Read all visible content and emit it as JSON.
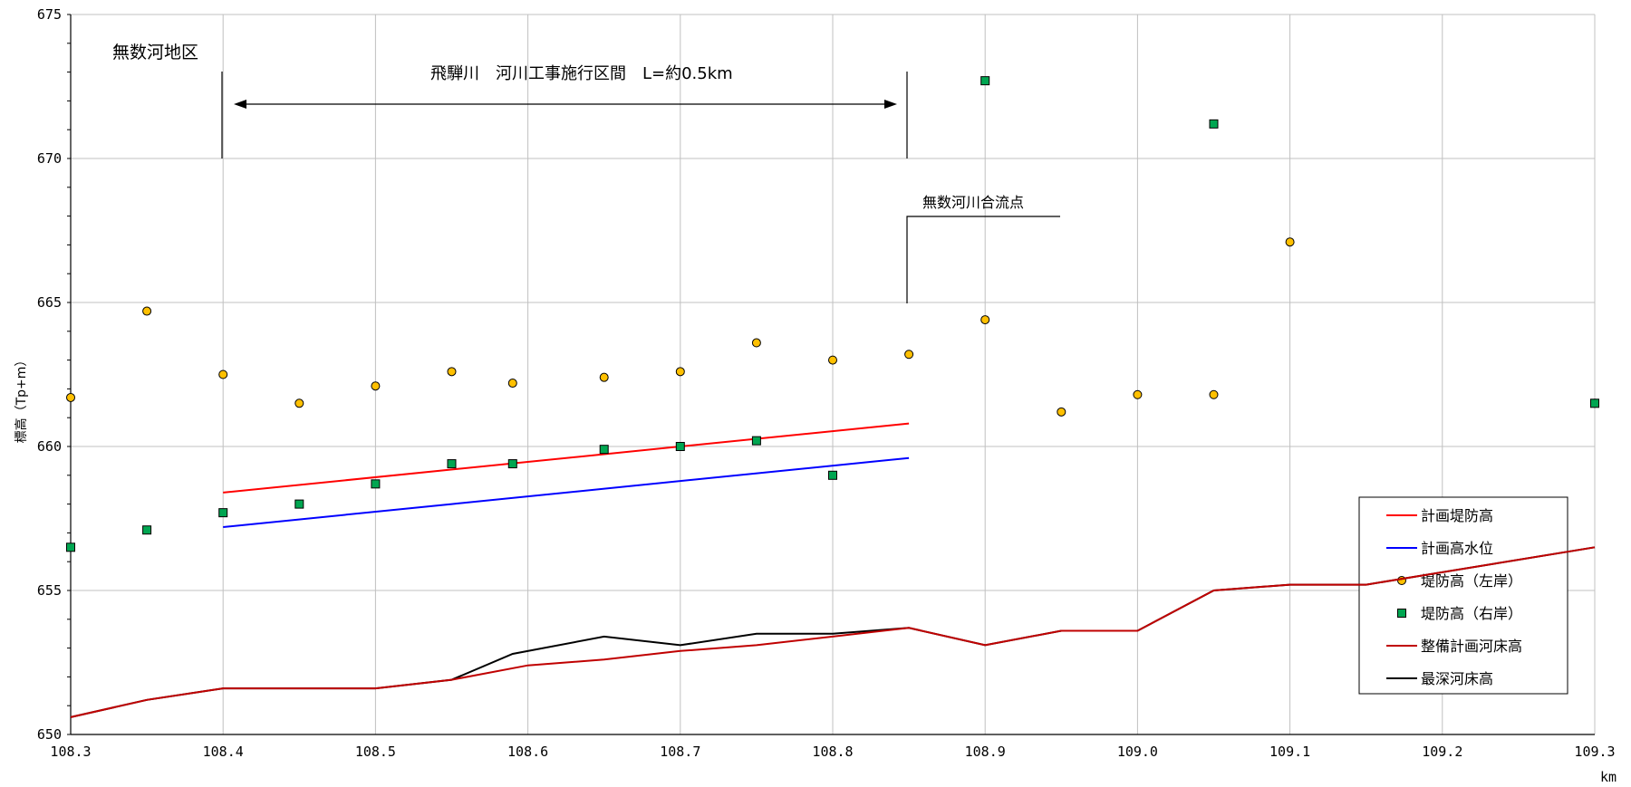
{
  "chart_data": {
    "type": "line",
    "title": "",
    "xlabel": "",
    "ylabel": "標高（Tp+m）",
    "x_unit": "km",
    "xlim": [
      108.3,
      109.3
    ],
    "ylim": [
      650,
      675
    ],
    "x_ticks": [
      "108.3",
      "108.4",
      "108.5",
      "108.6",
      "108.7",
      "108.8",
      "108.9",
      "109.0",
      "109.1",
      "109.2",
      "109.3"
    ],
    "y_ticks": [
      "650",
      "655",
      "660",
      "665",
      "670",
      "675"
    ],
    "grid": true,
    "legend_position": "bottom-right",
    "series": [
      {
        "name": "計画堤防高",
        "kind": "line",
        "color": "#ff0000",
        "points": [
          [
            108.4,
            658.4
          ],
          [
            108.85,
            660.8
          ]
        ]
      },
      {
        "name": "計画高水位",
        "kind": "line",
        "color": "#0000ff",
        "points": [
          [
            108.4,
            657.2
          ],
          [
            108.55,
            658.0
          ],
          [
            108.85,
            659.6
          ]
        ]
      },
      {
        "name": "堤防高（左岸）",
        "kind": "scatter",
        "marker": "circle",
        "color": "#ffc000",
        "points": [
          [
            108.3,
            661.7
          ],
          [
            108.35,
            664.7
          ],
          [
            108.4,
            662.5
          ],
          [
            108.45,
            661.5
          ],
          [
            108.5,
            662.1
          ],
          [
            108.55,
            662.6
          ],
          [
            108.59,
            662.2
          ],
          [
            108.65,
            662.4
          ],
          [
            108.7,
            662.6
          ],
          [
            108.75,
            663.6
          ],
          [
            108.8,
            663.0
          ],
          [
            108.85,
            663.2
          ],
          [
            108.9,
            664.4
          ],
          [
            108.95,
            661.2
          ],
          [
            109.0,
            661.8
          ],
          [
            109.05,
            661.8
          ],
          [
            109.1,
            667.1
          ],
          [
            109.3,
            661.5
          ]
        ]
      },
      {
        "name": "堤防高（右岸）",
        "kind": "scatter",
        "marker": "square",
        "color": "#00a651",
        "points": [
          [
            108.3,
            656.5
          ],
          [
            108.35,
            657.1
          ],
          [
            108.4,
            657.7
          ],
          [
            108.45,
            658.0
          ],
          [
            108.5,
            658.7
          ],
          [
            108.55,
            659.4
          ],
          [
            108.59,
            659.4
          ],
          [
            108.65,
            659.9
          ],
          [
            108.7,
            660.0
          ],
          [
            108.75,
            660.2
          ],
          [
            108.8,
            659.0
          ],
          [
            108.9,
            672.7
          ],
          [
            109.05,
            671.2
          ],
          [
            109.3,
            661.5
          ]
        ]
      },
      {
        "name": "整備計画河床高",
        "kind": "line",
        "color": "#c00000",
        "points": [
          [
            108.3,
            650.6
          ],
          [
            108.35,
            651.2
          ],
          [
            108.4,
            651.6
          ],
          [
            108.45,
            651.6
          ],
          [
            108.5,
            651.6
          ],
          [
            108.55,
            651.9
          ],
          [
            108.6,
            652.4
          ],
          [
            108.65,
            652.6
          ],
          [
            108.7,
            652.9
          ],
          [
            108.75,
            653.1
          ],
          [
            108.8,
            653.4
          ],
          [
            108.85,
            653.7
          ],
          [
            108.9,
            653.1
          ],
          [
            108.95,
            653.6
          ],
          [
            109.0,
            653.6
          ],
          [
            109.05,
            655.0
          ],
          [
            109.1,
            655.2
          ],
          [
            109.15,
            655.2
          ],
          [
            109.3,
            656.5
          ]
        ]
      },
      {
        "name": "最深河床高",
        "kind": "line",
        "color": "#000000",
        "points": [
          [
            108.3,
            650.6
          ],
          [
            108.35,
            651.2
          ],
          [
            108.4,
            651.6
          ],
          [
            108.45,
            651.6
          ],
          [
            108.5,
            651.6
          ],
          [
            108.55,
            651.9
          ],
          [
            108.59,
            652.8
          ],
          [
            108.65,
            653.4
          ],
          [
            108.7,
            653.1
          ],
          [
            108.75,
            653.5
          ],
          [
            108.8,
            653.5
          ],
          [
            108.85,
            653.7
          ],
          [
            108.9,
            653.1
          ],
          [
            108.95,
            653.6
          ],
          [
            109.0,
            653.6
          ],
          [
            109.05,
            655.0
          ],
          [
            109.1,
            655.2
          ],
          [
            109.15,
            655.2
          ],
          [
            109.3,
            656.5
          ]
        ]
      }
    ],
    "annotations": [
      {
        "text": "無数河地区",
        "at_x": 108.4
      },
      {
        "text": "飛騨川　河川工事施行区間　L=約0.5km",
        "from_x": 108.4,
        "to_x": 108.85
      },
      {
        "text": "無数河川合流点",
        "at_x": 108.85
      }
    ]
  }
}
